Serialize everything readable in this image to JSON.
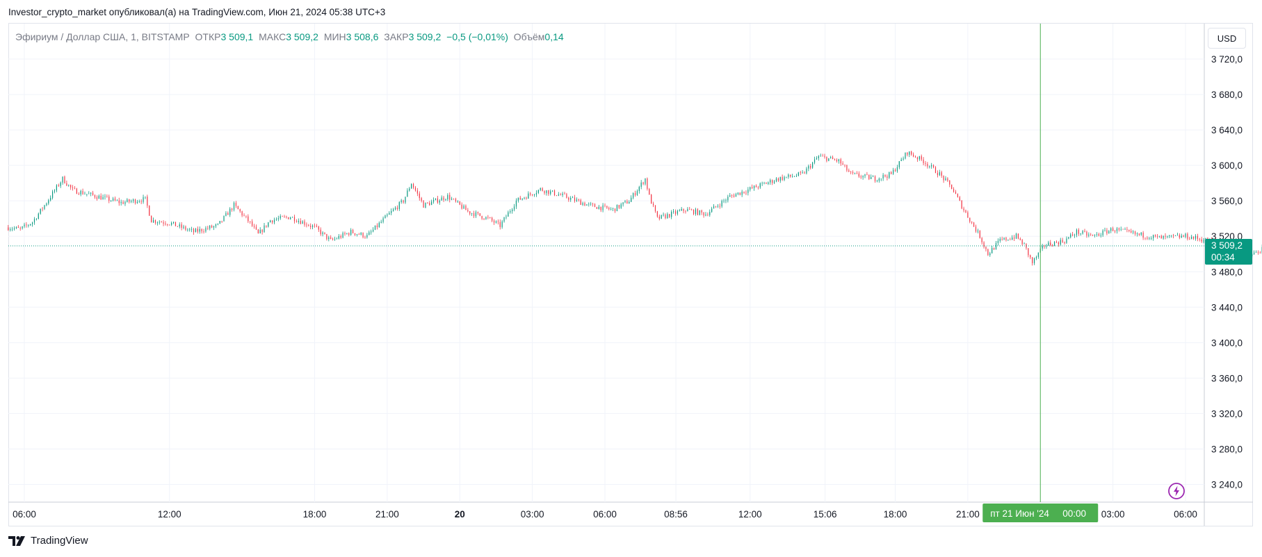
{
  "header": {
    "published_line": "Investor_crypto_market опубликовал(а) на TradingView.com, Июн 21, 2024 05:38 UTC+3"
  },
  "legend": {
    "symbol": "Эфириум / Доллар США, 1, BITSTAMP",
    "open_label": "ОТКР",
    "open_value": "3 509,1",
    "high_label": "МАКС",
    "high_value": "3 509,2",
    "low_label": "МИН",
    "low_value": "3 508,6",
    "close_label": "ЗАКР",
    "close_value": "3 509,2",
    "change": "−0,5 (−0,01%)",
    "volume_label": "Объём",
    "volume_value": "0,14"
  },
  "currency": "USD",
  "price_badge": {
    "price": "3 509,2",
    "countdown": "00:34"
  },
  "crosshair_label": {
    "date": "пт 21 Июн '24",
    "time": "00:00"
  },
  "footer": {
    "brand": "TradingView"
  },
  "colors": {
    "up": "#089981",
    "down": "#f23645",
    "crosshair": "#4caf50",
    "badge": "#089981",
    "grid": "#f0f3fa",
    "accent_purple": "#9c27b0"
  },
  "chart_data": {
    "type": "candlestick",
    "symbol": "Эфириум / Доллар США",
    "interval": "1",
    "exchange": "BITSTAMP",
    "ylim": [
      3220,
      3760
    ],
    "y_ticks": [
      3240,
      3280,
      3320,
      3360,
      3400,
      3440,
      3480,
      3520,
      3560,
      3600,
      3640,
      3680,
      3720
    ],
    "y_tick_labels": [
      "3 240,0",
      "3 280,0",
      "3 320,0",
      "3 360,0",
      "3 400,0",
      "3 440,0",
      "3 480,0",
      "3 520,0",
      "3 560,0",
      "3 600,0",
      "3 640,0",
      "3 680,0",
      "3 720,0"
    ],
    "x_ticks": [
      {
        "label": "06:00",
        "t": "2024-06-19T06:00",
        "bold": false
      },
      {
        "label": "12:00",
        "t": "2024-06-19T12:00",
        "bold": false
      },
      {
        "label": "18:00",
        "t": "2024-06-19T18:00",
        "bold": false
      },
      {
        "label": "21:00",
        "t": "2024-06-19T21:00",
        "bold": false
      },
      {
        "label": "20",
        "t": "2024-06-20T00:00",
        "bold": true
      },
      {
        "label": "03:00",
        "t": "2024-06-20T03:00",
        "bold": false
      },
      {
        "label": "06:00",
        "t": "2024-06-20T06:00",
        "bold": false
      },
      {
        "label": "08:56",
        "t": "2024-06-20T08:56",
        "bold": false
      },
      {
        "label": "12:00",
        "t": "2024-06-20T12:00",
        "bold": false
      },
      {
        "label": "15:06",
        "t": "2024-06-20T15:06",
        "bold": false
      },
      {
        "label": "18:00",
        "t": "2024-06-20T18:00",
        "bold": false
      },
      {
        "label": "21:00",
        "t": "2024-06-20T21:00",
        "bold": false
      },
      {
        "label": "03:00",
        "t": "2024-06-21T03:00",
        "bold": false
      },
      {
        "label": "06:00",
        "t": "2024-06-21T06:00",
        "bold": false
      }
    ],
    "crosshair_t": "2024-06-21T00:00",
    "last_price": 3509.2,
    "price_path": [
      [
        "2024-06-19T05:20",
        3530
      ],
      [
        "2024-06-19T05:50",
        3528
      ],
      [
        "2024-06-19T06:20",
        3536
      ],
      [
        "2024-06-19T06:50",
        3555
      ],
      [
        "2024-06-19T07:20",
        3575
      ],
      [
        "2024-06-19T07:35",
        3585
      ],
      [
        "2024-06-19T08:00",
        3572
      ],
      [
        "2024-06-19T09:00",
        3565
      ],
      [
        "2024-06-19T10:00",
        3558
      ],
      [
        "2024-06-19T11:00",
        3562
      ],
      [
        "2024-06-19T11:15",
        3538
      ],
      [
        "2024-06-19T12:00",
        3535
      ],
      [
        "2024-06-19T13:00",
        3525
      ],
      [
        "2024-06-19T14:00",
        3532
      ],
      [
        "2024-06-19T14:40",
        3555
      ],
      [
        "2024-06-19T15:20",
        3535
      ],
      [
        "2024-06-19T15:40",
        3522
      ],
      [
        "2024-06-19T16:10",
        3538
      ],
      [
        "2024-06-19T17:00",
        3542
      ],
      [
        "2024-06-19T18:00",
        3530
      ],
      [
        "2024-06-19T18:40",
        3515
      ],
      [
        "2024-06-19T19:30",
        3525
      ],
      [
        "2024-06-19T20:10",
        3520
      ],
      [
        "2024-06-19T21:00",
        3543
      ],
      [
        "2024-06-19T21:40",
        3560
      ],
      [
        "2024-06-19T22:00",
        3580
      ],
      [
        "2024-06-19T22:30",
        3555
      ],
      [
        "2024-06-19T23:30",
        3565
      ],
      [
        "2024-06-20T00:20",
        3548
      ],
      [
        "2024-06-20T01:10",
        3540
      ],
      [
        "2024-06-20T01:40",
        3532
      ],
      [
        "2024-06-20T02:20",
        3560
      ],
      [
        "2024-06-20T03:20",
        3573
      ],
      [
        "2024-06-20T04:20",
        3565
      ],
      [
        "2024-06-20T05:20",
        3555
      ],
      [
        "2024-06-20T06:20",
        3550
      ],
      [
        "2024-06-20T07:00",
        3560
      ],
      [
        "2024-06-20T07:40",
        3585
      ],
      [
        "2024-06-20T07:50",
        3565
      ],
      [
        "2024-06-20T08:10",
        3540
      ],
      [
        "2024-06-20T09:20",
        3550
      ],
      [
        "2024-06-20T10:10",
        3545
      ],
      [
        "2024-06-20T11:10",
        3565
      ],
      [
        "2024-06-20T12:10",
        3575
      ],
      [
        "2024-06-20T13:10",
        3585
      ],
      [
        "2024-06-20T14:10",
        3590
      ],
      [
        "2024-06-20T14:50",
        3610
      ],
      [
        "2024-06-20T15:40",
        3605
      ],
      [
        "2024-06-20T16:10",
        3590
      ],
      [
        "2024-06-20T17:10",
        3585
      ],
      [
        "2024-06-20T17:50",
        3590
      ],
      [
        "2024-06-20T18:30",
        3615
      ],
      [
        "2024-06-20T19:10",
        3605
      ],
      [
        "2024-06-20T19:50",
        3590
      ],
      [
        "2024-06-20T20:20",
        3575
      ],
      [
        "2024-06-20T20:50",
        3550
      ],
      [
        "2024-06-20T21:10",
        3535
      ],
      [
        "2024-06-20T21:30",
        3520
      ],
      [
        "2024-06-20T21:50",
        3500
      ],
      [
        "2024-06-20T22:20",
        3515
      ],
      [
        "2024-06-20T23:00",
        3520
      ],
      [
        "2024-06-20T23:20",
        3510
      ],
      [
        "2024-06-20T23:40",
        3490
      ],
      [
        "2024-06-21T00:10",
        3510
      ],
      [
        "2024-06-21T01:00",
        3515
      ],
      [
        "2024-06-21T01:30",
        3525
      ],
      [
        "2024-06-21T02:10",
        3520
      ],
      [
        "2024-06-21T03:00",
        3528
      ],
      [
        "2024-06-21T04:00",
        3522
      ],
      [
        "2024-06-21T05:00",
        3518
      ],
      [
        "2024-06-21T06:00",
        3520
      ],
      [
        "2024-06-21T07:00",
        3515
      ],
      [
        "2024-06-21T08:00",
        3510
      ],
      [
        "2024-06-21T08:40",
        3498
      ],
      [
        "2024-06-21T09:10",
        3505
      ],
      [
        "2024-06-21T09:40",
        3520
      ],
      [
        "2024-06-21T10:10",
        3530
      ],
      [
        "2024-06-21T10:40",
        3518
      ],
      [
        "2024-06-21T11:00",
        3509
      ]
    ]
  }
}
